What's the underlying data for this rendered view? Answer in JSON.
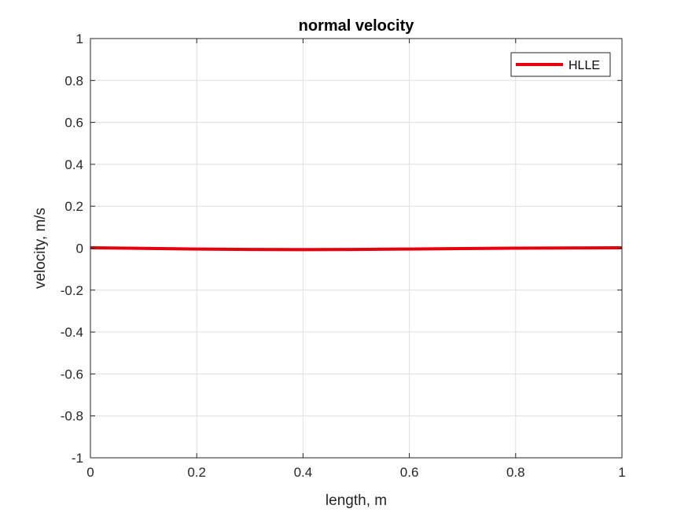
{
  "chart_data": {
    "type": "line",
    "title": "normal velocity",
    "xlabel": "length, m",
    "ylabel": "velocity, m/s",
    "xlim": [
      0,
      1
    ],
    "ylim": [
      -1,
      1
    ],
    "xticks": [
      0,
      0.2,
      0.4,
      0.6,
      0.8,
      1
    ],
    "xtick_labels": [
      "0",
      "0.2",
      "0.4",
      "0.6",
      "0.8",
      "1"
    ],
    "yticks": [
      -1,
      -0.8,
      -0.6,
      -0.4,
      -0.2,
      0,
      0.2,
      0.4,
      0.6,
      0.8,
      1
    ],
    "ytick_labels": [
      "-1",
      "-0.8",
      "-0.6",
      "-0.4",
      "-0.2",
      "0",
      "0.2",
      "0.4",
      "0.6",
      "0.8",
      "1"
    ],
    "grid": true,
    "legend_position": "top-right",
    "series": [
      {
        "name": "HLLE",
        "color": "#e8000b",
        "x": [
          0,
          0.1,
          0.2,
          0.3,
          0.4,
          0.5,
          0.6,
          0.7,
          0.8,
          0.9,
          1
        ],
        "y": [
          0.002,
          -0.001,
          -0.004,
          -0.006,
          -0.007,
          -0.006,
          -0.004,
          -0.002,
          0.0,
          0.001,
          0.002
        ]
      }
    ]
  }
}
